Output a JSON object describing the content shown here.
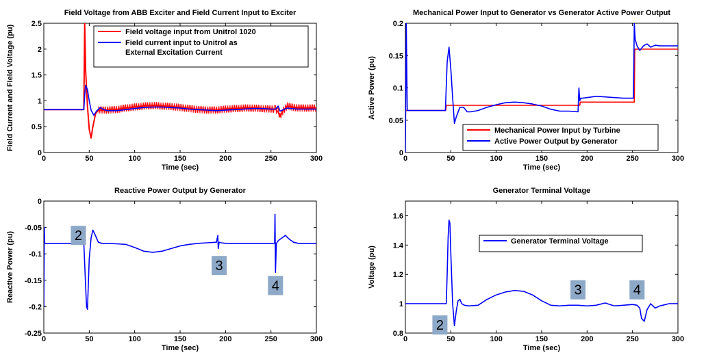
{
  "chart_data": [
    {
      "type": "line",
      "title": "Field Voltage from ABB Exciter and Field Current Input to Exciter",
      "xlabel": "Time (sec)",
      "ylabel": "Field Current and Field Voltage (pu)",
      "xlim": [
        0,
        300
      ],
      "ylim": [
        0,
        2.5
      ],
      "xticks": [
        "0",
        "50",
        "100",
        "150",
        "200",
        "250",
        "300"
      ],
      "yticks": [
        "0",
        "0.5",
        "1",
        "1.5",
        "2",
        "2.5"
      ],
      "legend_position": "top-right",
      "series": [
        {
          "name": "Field voltage input from Unitrol 1020",
          "color": "#ff0000",
          "band": true,
          "x": [
            0,
            44,
            45,
            46,
            48,
            50,
            52,
            54,
            57,
            60,
            64,
            70,
            80,
            90,
            100,
            110,
            120,
            130,
            140,
            150,
            160,
            170,
            180,
            190,
            200,
            210,
            220,
            230,
            240,
            250,
            255,
            258,
            260,
            264,
            268,
            272,
            280,
            290,
            300
          ],
          "y": [
            0.83,
            0.83,
            2.5,
            1.6,
            0.9,
            0.45,
            0.28,
            0.5,
            0.75,
            0.82,
            0.82,
            0.82,
            0.83,
            0.86,
            0.88,
            0.9,
            0.91,
            0.9,
            0.89,
            0.87,
            0.85,
            0.83,
            0.82,
            0.82,
            0.84,
            0.85,
            0.86,
            0.86,
            0.85,
            0.84,
            0.84,
            0.78,
            0.7,
            0.82,
            0.9,
            0.88,
            0.86,
            0.86,
            0.86
          ]
        },
        {
          "name": "Field current input to Unitrol as External Excitation Current",
          "color": "#0000ff",
          "x": [
            0,
            44,
            45,
            46,
            48,
            50,
            52,
            55,
            58,
            62,
            66,
            70,
            80,
            90,
            100,
            110,
            120,
            130,
            140,
            150,
            160,
            170,
            180,
            190,
            200,
            210,
            220,
            230,
            240,
            250,
            255,
            258,
            260,
            264,
            268,
            272,
            280,
            290,
            300
          ],
          "y": [
            0.83,
            0.83,
            1.1,
            1.3,
            1.22,
            1.0,
            0.82,
            0.72,
            0.8,
            0.87,
            0.83,
            0.81,
            0.81,
            0.83,
            0.85,
            0.87,
            0.88,
            0.88,
            0.87,
            0.86,
            0.84,
            0.83,
            0.82,
            0.81,
            0.82,
            0.83,
            0.84,
            0.85,
            0.85,
            0.84,
            0.84,
            0.9,
            0.8,
            0.83,
            0.86,
            0.85,
            0.84,
            0.84,
            0.84
          ]
        }
      ]
    },
    {
      "type": "line",
      "title": "Mechanical Power Input to Generator vs Generator Active Power Output",
      "xlabel": "Time (sec)",
      "ylabel": "Active Power (pu)",
      "xlim": [
        0,
        300
      ],
      "ylim": [
        0,
        0.2
      ],
      "xticks": [
        "0",
        "50",
        "100",
        "150",
        "200",
        "250",
        "300"
      ],
      "yticks": [
        "0",
        "0.05",
        "0.1",
        "0.15",
        "0.2"
      ],
      "legend_position": "bottom-right",
      "series": [
        {
          "name": "Mechanical Power Input by Turbine",
          "color": "#ff0000",
          "x": [
            0,
            44.5,
            45,
            190,
            192,
            192.5,
            194,
            250,
            252,
            252.5,
            300
          ],
          "y": [
            0.065,
            0.065,
            0.073,
            0.073,
            0.073,
            0.078,
            0.078,
            0.078,
            0.078,
            0.16,
            0.16
          ]
        },
        {
          "name": "Active Power Output by Generator",
          "color": "#0000ff",
          "x": [
            0,
            1,
            2,
            44,
            46,
            48,
            50,
            52,
            54,
            56,
            60,
            64,
            68,
            72,
            80,
            90,
            100,
            110,
            120,
            130,
            140,
            150,
            160,
            170,
            180,
            190,
            191,
            192,
            193,
            195,
            200,
            210,
            220,
            230,
            240,
            250,
            251,
            252,
            253,
            255,
            258,
            262,
            266,
            270,
            275,
            280,
            290,
            300
          ],
          "y": [
            0.0,
            0.2,
            0.065,
            0.065,
            0.14,
            0.163,
            0.13,
            0.085,
            0.045,
            0.055,
            0.07,
            0.07,
            0.063,
            0.063,
            0.065,
            0.07,
            0.074,
            0.077,
            0.078,
            0.077,
            0.075,
            0.072,
            0.067,
            0.064,
            0.064,
            0.063,
            0.1,
            0.08,
            0.084,
            0.084,
            0.085,
            0.087,
            0.086,
            0.085,
            0.084,
            0.084,
            0.084,
            0.2,
            0.175,
            0.165,
            0.158,
            0.165,
            0.168,
            0.163,
            0.166,
            0.165,
            0.165,
            0.165
          ]
        }
      ]
    },
    {
      "type": "line",
      "title": "Reactive Power Output by Generator",
      "xlabel": "Time (sec)",
      "ylabel": "Reactive Power (pu)",
      "xlim": [
        0,
        300
      ],
      "ylim": [
        -0.25,
        0
      ],
      "xticks": [
        "0",
        "50",
        "100",
        "150",
        "200",
        "250",
        "300"
      ],
      "yticks": [
        "-0.25",
        "-0.2",
        "-0.15",
        "-0.1",
        "-0.05",
        "0"
      ],
      "series": [
        {
          "name": "",
          "color": "#0000ff",
          "x": [
            0,
            0.5,
            1,
            44,
            45,
            46,
            47,
            48,
            50,
            52,
            54,
            56,
            60,
            64,
            70,
            80,
            90,
            100,
            110,
            120,
            130,
            140,
            150,
            160,
            170,
            180,
            190,
            191.5,
            192,
            193,
            195,
            200,
            210,
            220,
            230,
            240,
            250,
            254,
            254.5,
            255,
            256,
            258,
            262,
            266,
            270,
            275,
            280,
            290,
            300
          ],
          "y": [
            -0.2,
            -0.05,
            -0.08,
            -0.08,
            -0.12,
            -0.16,
            -0.2,
            -0.205,
            -0.11,
            -0.07,
            -0.055,
            -0.062,
            -0.078,
            -0.08,
            -0.08,
            -0.081,
            -0.082,
            -0.088,
            -0.095,
            -0.097,
            -0.095,
            -0.09,
            -0.085,
            -0.082,
            -0.08,
            -0.079,
            -0.078,
            -0.065,
            -0.09,
            -0.078,
            -0.079,
            -0.08,
            -0.08,
            -0.08,
            -0.08,
            -0.08,
            -0.08,
            -0.08,
            -0.025,
            -0.135,
            -0.08,
            -0.075,
            -0.07,
            -0.065,
            -0.072,
            -0.078,
            -0.08,
            -0.08,
            -0.08
          ]
        }
      ],
      "annotations": [
        {
          "label": "2",
          "x": 38,
          "y": -0.065
        },
        {
          "label": "3",
          "x": 193,
          "y": -0.122
        },
        {
          "label": "4",
          "x": 255,
          "y": -0.16
        }
      ]
    },
    {
      "type": "line",
      "title": "Generator Terminal Voltage",
      "xlabel": "Time (sec)",
      "ylabel": "Voltage (pu)",
      "xlim": [
        0,
        300
      ],
      "ylim": [
        0.8,
        1.7
      ],
      "xticks": [
        "0",
        "50",
        "100",
        "150",
        "200",
        "250",
        "300"
      ],
      "yticks": [
        "0.8",
        "1",
        "1.2",
        "1.4",
        "1.6"
      ],
      "legend_position": "top-right",
      "series": [
        {
          "name": "Generator Terminal Voltage",
          "color": "#0000ff",
          "x": [
            0,
            44,
            45,
            46,
            47,
            48,
            49,
            50,
            52,
            54,
            56,
            58,
            60,
            62,
            65,
            70,
            80,
            90,
            100,
            110,
            120,
            130,
            140,
            150,
            160,
            170,
            180,
            190,
            200,
            210,
            220,
            225,
            230,
            240,
            250,
            255,
            258,
            260,
            263,
            266,
            270,
            275,
            280,
            290,
            300
          ],
          "y": [
            1.0,
            1.0,
            1.0,
            1.2,
            1.45,
            1.57,
            1.55,
            1.35,
            1.0,
            0.85,
            0.95,
            1.02,
            1.03,
            1.0,
            0.99,
            0.985,
            0.99,
            1.03,
            1.06,
            1.08,
            1.09,
            1.085,
            1.06,
            1.02,
            0.99,
            0.985,
            0.99,
            0.99,
            0.985,
            0.99,
            1.005,
            0.995,
            0.985,
            0.99,
            0.995,
            0.99,
            0.97,
            0.9,
            0.88,
            0.96,
            1.0,
            0.97,
            0.985,
            1.0,
            1.0
          ]
        }
      ],
      "annotations": [
        {
          "label": "2",
          "x": 38,
          "y": 0.855
        },
        {
          "label": "3",
          "x": 190,
          "y": 1.095
        },
        {
          "label": "4",
          "x": 255,
          "y": 1.095
        }
      ]
    }
  ]
}
